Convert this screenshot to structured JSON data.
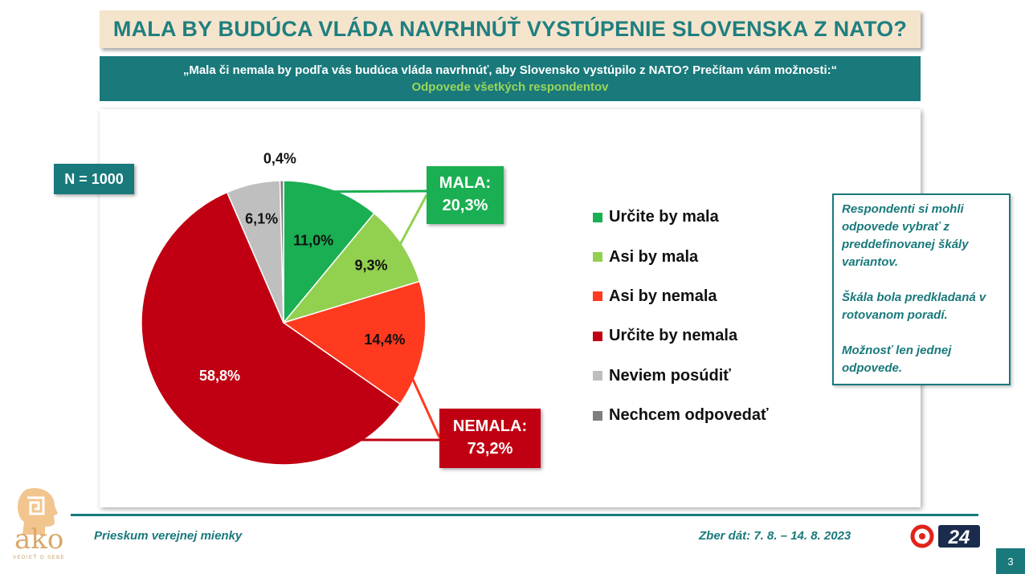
{
  "title": "MALA BY BUDÚCA VLÁDA NAVRHNÚŤ VYSTÚPENIE SLOVENSKA Z NATO?",
  "question": "„Mala či nemala by podľa vás budúca vláda navrhnúť, aby Slovensko vystúpilo z NATO? Prečítam vám možnosti:“",
  "question_sub": "Odpovede všetkých respondentov",
  "n_label": "N = 1000",
  "callouts": {
    "mala_title": "MALA:",
    "mala_value": "20,3%",
    "nemala_title": "NEMALA:",
    "nemala_value": "73,2%"
  },
  "chart_data": {
    "type": "pie",
    "series": [
      {
        "label": "Určite by mala",
        "value": 11.0,
        "display": "11,0%",
        "color": "#1aaf52"
      },
      {
        "label": "Asi by mala",
        "value": 9.3,
        "display": "9,3%",
        "color": "#92d050"
      },
      {
        "label": "Asi by nemala",
        "value": 14.4,
        "display": "14,4%",
        "color": "#ff3a1f"
      },
      {
        "label": "Určite by nemala",
        "value": 58.8,
        "display": "58,8%",
        "color": "#c00012"
      },
      {
        "label": "Neviem posúdiť",
        "value": 6.1,
        "display": "6,1%",
        "color": "#bfbfbf"
      },
      {
        "label": "Nechcem odpovedať",
        "value": 0.4,
        "display": "0,4%",
        "color": "#7f7f7f"
      }
    ],
    "legend_position": "right"
  },
  "notes": [
    "Respondenti si mohli odpovede vybrať z preddefinovanej škály variantov.",
    "Škála bola predkladaná v rotovanom poradí.",
    "Možnosť len jednej odpovede."
  ],
  "footer": {
    "left": "Prieskum verejnej mienky",
    "right": "Zber dát: 7. 8. – 14. 8. 2023",
    "page": "3",
    "logo_text": "ako",
    "logo_sub": "VEDIEŤ O SEBE",
    "tv_logo": "24"
  }
}
